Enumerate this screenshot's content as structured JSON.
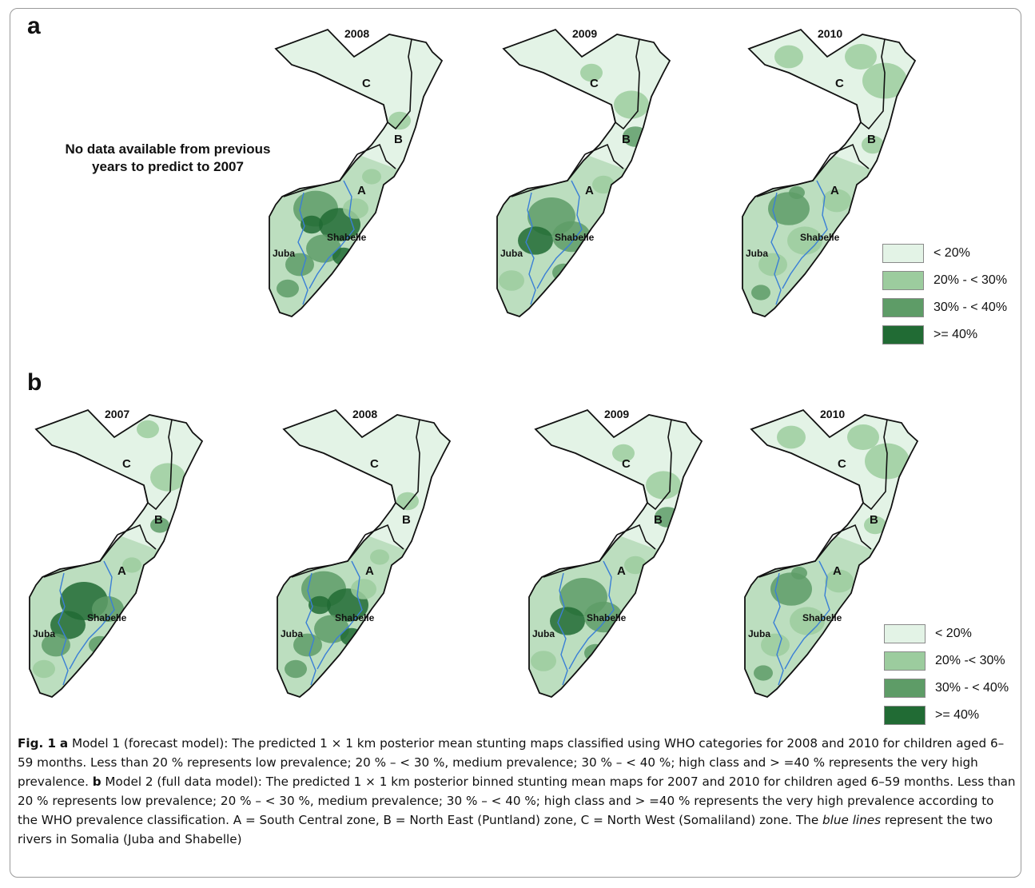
{
  "panels": {
    "a": {
      "letter": "a",
      "no_data_line1": "No data available from previous",
      "no_data_line2": "years to predict to 2007",
      "years": [
        "2008",
        "2009",
        "2010"
      ]
    },
    "b": {
      "letter": "b",
      "years": [
        "2007",
        "2008",
        "2009",
        "2010"
      ]
    }
  },
  "zone_labels": {
    "A": "A",
    "B": "B",
    "C": "C"
  },
  "river_labels": {
    "juba": "Juba",
    "shabelle": "Shabelle"
  },
  "legend_a": [
    {
      "label": "< 20%",
      "color": "#e3f3e6"
    },
    {
      "label": "20% - < 30%",
      "color": "#9ccc9e"
    },
    {
      "label": "30% - < 40%",
      "color": "#5e9c67"
    },
    {
      "label": ">= 40%",
      "color": "#216b34"
    }
  ],
  "legend_b": [
    {
      "label": "< 20%",
      "color": "#e3f3e6"
    },
    {
      "label": "20% -< 30%",
      "color": "#9ccc9e"
    },
    {
      "label": "30% - < 40%",
      "color": "#5e9c67"
    },
    {
      "label": ">= 40%",
      "color": "#216b34"
    }
  ],
  "colors": {
    "river": "#3a7fd6",
    "border": "#111111"
  },
  "caption": {
    "fig_label": "Fig. 1",
    "a_bold": "a",
    "a_text": " Model 1 (forecast model): The predicted 1 × 1 km posterior mean stunting maps classified using WHO categories for 2008 and 2010 for children aged 6–59 months. Less than 20 % represents low prevalence; 20 % – < 30 %, medium prevalence; 30 % – < 40 %; high class and > =40 % represents the very high prevalence. ",
    "b_bold": "b",
    "b_text": " Model 2 (full data model): The predicted 1 × 1 km posterior binned stunting mean maps for 2007 and 2010 for children aged 6–59 months. Less than 20 % represents low prevalence; 20 % – < 30 %, medium prevalence; 30 % – < 40 %; high class and > =40 % represents the very high prevalence according to the WHO prevalence classification. A = South Central zone, B = North East (Puntland) zone, C = North West (Somaliland) zone. The ",
    "italic": "blue lines",
    "tail": " represent the two rivers in Somalia (Juba and Shabelle)"
  }
}
